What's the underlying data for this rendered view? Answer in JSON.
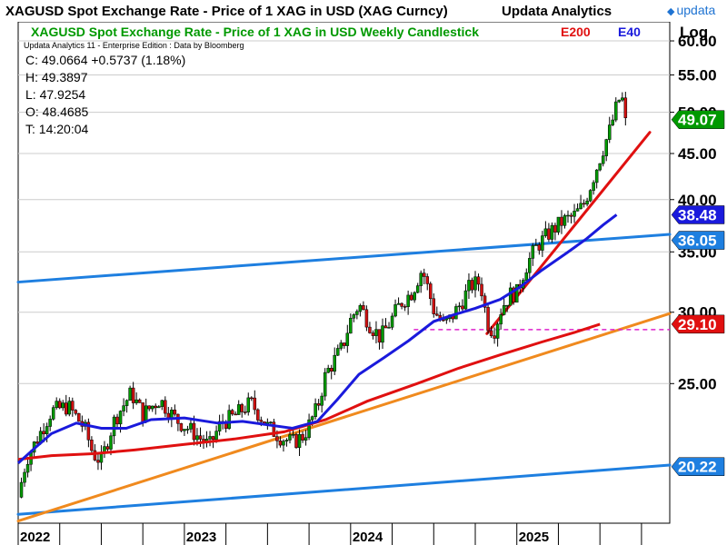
{
  "header": {
    "title": "XAGUSD Spot Exchange Rate - Price of 1 XAG in USD (XAG Curncy)",
    "brand": "Updata Analytics",
    "logo_text": "updata"
  },
  "legend": {
    "title": "XAGUSD Spot Exchange Rate - Price of 1 XAG in USD Weekly Candlestick",
    "e200": "E200",
    "e40": "E40"
  },
  "note": "Updata Analytics 11 - Enterprise Edition : Data by Bloomberg",
  "scale_label": "Log",
  "info": {
    "close": "C: 49.0664  +0.5737 (1.18%)",
    "high": "H: 49.3897",
    "low": "L: 47.9254",
    "open": "O: 48.4685",
    "time": "T: 14:20:04"
  },
  "colors": {
    "up_candle": "#009900",
    "down_candle": "#d01010",
    "e200": "#e01010",
    "e40": "#1a1adc",
    "channel": "#1e7fe0",
    "support": "#f08a1e",
    "steep_trend": "#e01010",
    "dashed_level": "#dd22cc",
    "grid": "#cccccc"
  },
  "chart_data": {
    "type": "candlestick",
    "interval": "weekly",
    "y_scale": "log",
    "ylim": [
      17.5,
      63
    ],
    "y_ticks": [
      {
        "value": 25,
        "label": "25.00"
      },
      {
        "value": 30,
        "label": "30.00"
      },
      {
        "value": 35,
        "label": "35.00"
      },
      {
        "value": 40,
        "label": "40.00"
      },
      {
        "value": 45,
        "label": "45.00"
      },
      {
        "value": 50,
        "label": "50.00"
      },
      {
        "value": 55,
        "label": "55.00"
      },
      {
        "value": 60,
        "label": "60.00"
      }
    ],
    "x_ticks": [
      {
        "t": 2022.0,
        "label": "2022"
      },
      {
        "t": 2023.0,
        "label": "2023"
      },
      {
        "t": 2024.0,
        "label": "2024"
      },
      {
        "t": 2025.0,
        "label": "2025"
      }
    ],
    "x_divisions": [
      2022.25,
      2022.5,
      2022.75,
      2023.25,
      2023.5,
      2023.75,
      2024.25,
      2024.5,
      2024.75,
      2025.25,
      2025.5,
      2025.75
    ],
    "xlim": [
      2022.0,
      2025.92
    ],
    "price_path": [
      [
        2022.0,
        18.7
      ],
      [
        2022.05,
        20.6
      ],
      [
        2022.12,
        21.8
      ],
      [
        2022.2,
        23.3
      ],
      [
        2022.3,
        23.6
      ],
      [
        2022.4,
        22.3
      ],
      [
        2022.45,
        20.9
      ],
      [
        2022.5,
        20.5
      ],
      [
        2022.58,
        22.8
      ],
      [
        2022.68,
        24.4
      ],
      [
        2022.75,
        23.1
      ],
      [
        2022.85,
        24.0
      ],
      [
        2022.95,
        22.8
      ],
      [
        2023.05,
        22.1
      ],
      [
        2023.15,
        21.3
      ],
      [
        2023.22,
        22.6
      ],
      [
        2023.3,
        23.0
      ],
      [
        2023.4,
        23.8
      ],
      [
        2023.5,
        22.4
      ],
      [
        2023.58,
        21.8
      ],
      [
        2023.65,
        21.5
      ],
      [
        2023.72,
        21.9
      ],
      [
        2023.8,
        23.5
      ],
      [
        2023.85,
        25.6
      ],
      [
        2023.9,
        26.5
      ],
      [
        2023.95,
        27.4
      ],
      [
        2024.0,
        29.4
      ],
      [
        2024.05,
        30.6
      ],
      [
        2024.12,
        29.0
      ],
      [
        2024.18,
        28.1
      ],
      [
        2024.24,
        29.3
      ],
      [
        2024.3,
        30.7
      ],
      [
        2024.37,
        31.6
      ],
      [
        2024.43,
        33.5
      ],
      [
        2024.5,
        30.2
      ],
      [
        2024.56,
        29.0
      ],
      [
        2024.6,
        29.5
      ],
      [
        2024.66,
        30.6
      ],
      [
        2024.72,
        32.1
      ],
      [
        2024.78,
        32.4
      ],
      [
        2024.82,
        29.3
      ],
      [
        2024.86,
        28.5
      ],
      [
        2024.91,
        30.4
      ],
      [
        2024.96,
        31.4
      ],
      [
        2025.0,
        31.5
      ],
      [
        2025.05,
        33.6
      ],
      [
        2025.12,
        35.5
      ],
      [
        2025.2,
        36.8
      ],
      [
        2025.28,
        37.9
      ],
      [
        2025.34,
        38.3
      ],
      [
        2025.4,
        39.4
      ],
      [
        2025.45,
        41.8
      ],
      [
        2025.5,
        44.5
      ],
      [
        2025.56,
        47.8
      ],
      [
        2025.6,
        50.7
      ],
      [
        2025.63,
        52.5
      ],
      [
        2025.65,
        48.4
      ],
      [
        2025.66,
        49.07
      ]
    ],
    "e40_path": [
      [
        2022.0,
        20.4
      ],
      [
        2022.1,
        21.2
      ],
      [
        2022.2,
        22.0
      ],
      [
        2022.35,
        22.6
      ],
      [
        2022.5,
        22.3
      ],
      [
        2022.65,
        22.3
      ],
      [
        2022.8,
        22.8
      ],
      [
        2023.0,
        22.9
      ],
      [
        2023.2,
        22.6
      ],
      [
        2023.35,
        22.7
      ],
      [
        2023.5,
        22.5
      ],
      [
        2023.65,
        22.3
      ],
      [
        2023.8,
        22.7
      ],
      [
        2023.92,
        24.0
      ],
      [
        2024.05,
        25.6
      ],
      [
        2024.2,
        26.7
      ],
      [
        2024.35,
        27.9
      ],
      [
        2024.5,
        29.3
      ],
      [
        2024.62,
        29.8
      ],
      [
        2024.75,
        30.3
      ],
      [
        2024.9,
        31.0
      ],
      [
        2025.02,
        32.0
      ],
      [
        2025.15,
        33.4
      ],
      [
        2025.3,
        34.9
      ],
      [
        2025.42,
        36.2
      ],
      [
        2025.52,
        37.5
      ],
      [
        2025.6,
        38.48
      ]
    ],
    "e200_path": [
      [
        2022.0,
        20.6
      ],
      [
        2022.2,
        20.8
      ],
      [
        2022.45,
        20.9
      ],
      [
        2022.7,
        21.1
      ],
      [
        2023.0,
        21.4
      ],
      [
        2023.3,
        21.7
      ],
      [
        2023.6,
        22.1
      ],
      [
        2023.85,
        22.8
      ],
      [
        2024.1,
        23.9
      ],
      [
        2024.4,
        25.0
      ],
      [
        2024.65,
        26.0
      ],
      [
        2024.9,
        26.9
      ],
      [
        2025.15,
        27.8
      ],
      [
        2025.35,
        28.5
      ],
      [
        2025.5,
        29.1
      ]
    ],
    "trendlines": [
      {
        "kind": "channel-upper",
        "from": [
          2022.0,
          32.4
        ],
        "to": [
          2025.92,
          36.6
        ]
      },
      {
        "kind": "channel-lower",
        "from": [
          2022.0,
          17.9
        ],
        "to": [
          2025.92,
          20.3
        ]
      },
      {
        "kind": "support",
        "from": [
          2022.0,
          17.6
        ],
        "to": [
          2025.92,
          29.9
        ]
      },
      {
        "kind": "steep-trend",
        "from": [
          2024.82,
          28.4
        ],
        "to": [
          2025.8,
          47.5
        ]
      }
    ],
    "dashed_level": {
      "value": 28.7,
      "from": 2024.38,
      "to": 2025.92
    },
    "price_tags": [
      {
        "value": 49.07,
        "label": "49.07",
        "color": "#009900"
      },
      {
        "value": 38.48,
        "label": "38.48",
        "color": "#1a1adc"
      },
      {
        "value": 36.05,
        "label": "36.05",
        "color": "#1e7fe0"
      },
      {
        "value": 29.1,
        "label": "29.10",
        "color": "#e01010"
      },
      {
        "value": 20.22,
        "label": "20.22",
        "color": "#1e7fe0"
      }
    ]
  }
}
